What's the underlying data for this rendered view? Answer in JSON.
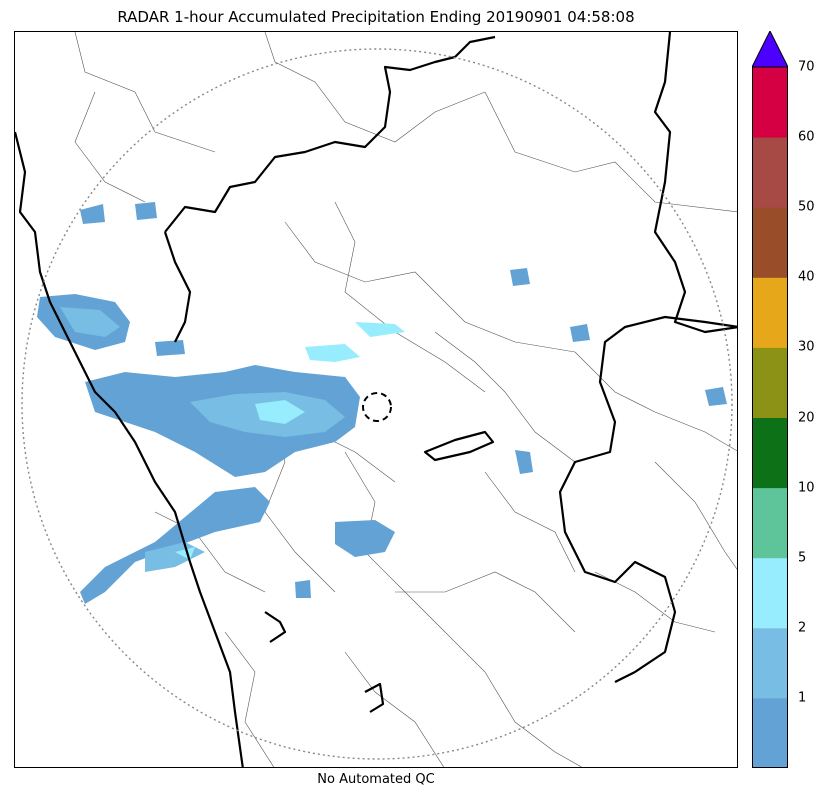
{
  "title": "RADAR 1-hour Accumulated Precipitation Ending 20190901 04:58:08",
  "footer": "No Automated QC",
  "colorbar": {
    "labels": [
      "1",
      "2",
      "5",
      "10",
      "20",
      "30",
      "40",
      "50",
      "60",
      "70"
    ],
    "segments": [
      {
        "color": "#63a2d4"
      },
      {
        "color": "#78bde3"
      },
      {
        "color": "#97ecfd"
      },
      {
        "color": "#5ec499"
      },
      {
        "color": "#0d7117"
      },
      {
        "color": "#8b9215"
      },
      {
        "color": "#e6a81a"
      },
      {
        "color": "#9a4d29"
      },
      {
        "color": "#a74a45"
      },
      {
        "color": "#d50043"
      }
    ],
    "extend_color": "#4c00ff"
  },
  "map": {
    "range_ring": "dotted",
    "radar_site_marker": "dashed-circle",
    "colors": {
      "precip_light": "#63a2d4",
      "precip_medium": "#78bde3",
      "precip_heavy": "#97ecfd",
      "coastline": "#000000",
      "district_border": "#555555"
    }
  }
}
